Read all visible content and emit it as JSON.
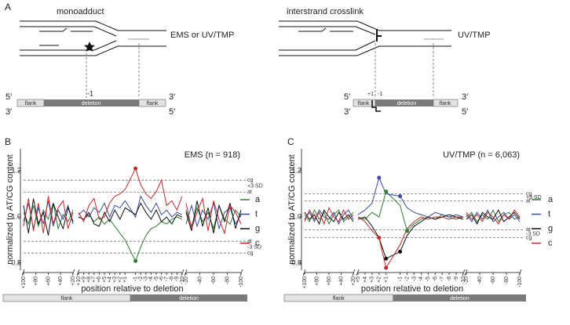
{
  "panel_a": {
    "label": "A",
    "left": {
      "title": "monoadduct",
      "agent": "EMS or UV/TMP",
      "pos": "-1",
      "top_left": "5′",
      "top_right": "3′",
      "bottom_left": "3′",
      "bottom_right": "5′",
      "bar": [
        "flank",
        "deletion",
        "flank"
      ]
    },
    "right": {
      "title": "interstrand crosslink",
      "agent": "UV/TMP",
      "pos_plus": "+1",
      "pos_minus": "-1",
      "top_left": "5′",
      "top_right": "3′",
      "bottom_left": "3′",
      "bottom_right": "5′",
      "bar": [
        "flank",
        "deletion",
        "flank"
      ]
    }
  },
  "chart_data": [
    {
      "type": "line",
      "panel": "B",
      "title": "EMS (n = 918)",
      "ylabel": "normalized to AT/CG content",
      "xlabel": "position relative to deletion",
      "ylim": [
        0.77,
        1.295
      ],
      "yticks": [
        0.8,
        {
          "value": 1,
          "label": "1.0"
        },
        1.2
      ],
      "ref_lines": [
        {
          "value": 1.159,
          "label": "cg"
        },
        {
          "value": 1.108,
          "label": "at"
        },
        {
          "value": 0.895,
          "label": "at"
        },
        {
          "value": 0.844,
          "label": "cg"
        }
      ],
      "sd_labels": [
        "+3 SD",
        "-3 SD"
      ],
      "band_labels": [
        "flank",
        "deletion"
      ],
      "segments": [
        {
          "x": [
            100,
            92,
            84,
            76,
            68,
            60,
            52,
            44,
            36,
            28,
            20
          ],
          "xlim": [
            100,
            20
          ],
          "xticks": [
            {
              "value": 100,
              "label": "+100"
            },
            {
              "value": 80,
              "label": "+80"
            },
            {
              "value": 60,
              "label": "+60"
            },
            {
              "value": 40,
              "label": "+40"
            },
            {
              "value": 20,
              "label": "+20"
            }
          ]
        },
        {
          "x": [
            10,
            9,
            8,
            7,
            6,
            5,
            4,
            3,
            2,
            1,
            -1,
            -2,
            -3,
            -4,
            -5,
            -6,
            -7,
            -8,
            -9,
            -10
          ],
          "xlim": [
            10,
            -10
          ],
          "xticks": [
            {
              "value": 10,
              "label": "+10"
            },
            {
              "value": 9,
              "label": "+9"
            },
            {
              "value": 8,
              "label": "+8"
            },
            {
              "value": 7,
              "label": "+7"
            },
            {
              "value": 6,
              "label": "+6"
            },
            {
              "value": 5,
              "label": "+5"
            },
            {
              "value": 4,
              "label": "+4"
            },
            {
              "value": 3,
              "label": "+3"
            },
            {
              "value": 2,
              "label": "+2"
            },
            {
              "value": 1,
              "label": "+1"
            },
            -1,
            -2,
            -3,
            -4,
            -5,
            -6,
            -7,
            -8,
            -9,
            -10
          ]
        },
        {
          "x": [
            -20,
            -28,
            -36,
            -44,
            -52,
            -60,
            -68,
            -76,
            -84,
            -92,
            -100
          ],
          "xlim": [
            -20,
            -100
          ],
          "xticks": [
            -20,
            -40,
            -60,
            -80,
            -100
          ]
        }
      ],
      "series": [
        {
          "name": "a",
          "color": "#2e7d32",
          "markers": [
            [],
            [
              10
            ],
            []
          ],
          "values": [
            [
              1.02,
              0.97,
              1.05,
              0.96,
              1.03,
              0.99,
              1.06,
              0.95,
              1.01,
              0.98,
              1.03
            ],
            [
              1.0,
              0.99,
              1.01,
              0.98,
              1.0,
              0.97,
              0.99,
              0.96,
              0.93,
              0.9,
              0.81,
              0.87,
              0.92,
              0.95,
              0.96,
              0.98,
              0.97,
              0.99,
              1.0,
              0.99
            ],
            [
              1.03,
              0.96,
              1.04,
              0.98,
              1.02,
              0.95,
              1.05,
              0.99,
              0.97,
              1.03,
              1.0
            ]
          ]
        },
        {
          "name": "t",
          "color": "#3b4ba8",
          "markers": [
            [],
            [],
            []
          ],
          "values": [
            [
              0.98,
              1.06,
              0.95,
              1.04,
              0.97,
              1.07,
              0.96,
              1.03,
              0.99,
              1.05,
              0.97
            ],
            [
              1.01,
              1.03,
              1.0,
              1.04,
              1.02,
              1.06,
              1.0,
              1.05,
              1.04,
              1.07,
              1.0,
              1.09,
              1.05,
              1.02,
              1.06,
              1.01,
              1.03,
              1.0,
              1.02,
              1.01
            ],
            [
              0.97,
              1.05,
              0.96,
              1.03,
              0.99,
              1.06,
              0.95,
              1.02,
              1.04,
              0.97,
              1.01
            ]
          ]
        },
        {
          "name": "g",
          "color": "#111111",
          "markers": [
            [],
            [],
            []
          ],
          "values": [
            [
              1.05,
              0.93,
              1.08,
              0.97,
              1.02,
              0.92,
              1.06,
              1.0,
              0.95,
              1.04,
              0.98
            ],
            [
              1.0,
              0.99,
              1.02,
              0.97,
              0.96,
              1.02,
              0.98,
              1.03,
              0.99,
              1.04,
              1.01,
              1.06,
              1.02,
              0.99,
              1.03,
              0.98,
              1.0,
              0.97,
              1.01,
              1.0
            ],
            [
              1.02,
              0.94,
              1.07,
              0.96,
              1.04,
              0.93,
              1.05,
              0.98,
              1.06,
              0.95,
              1.03
            ]
          ]
        },
        {
          "name": "c",
          "color": "#c62828",
          "markers": [
            [],
            [
              10
            ],
            []
          ],
          "values": [
            [
              0.96,
              1.08,
              0.94,
              1.06,
              0.93,
              1.09,
              0.97,
              1.04,
              1.07,
              0.95,
              1.02
            ],
            [
              1.02,
              0.98,
              1.05,
              1.08,
              0.99,
              1.0,
              1.06,
              1.09,
              1.1,
              1.12,
              1.21,
              1.14,
              1.1,
              1.08,
              1.11,
              1.16,
              1.05,
              1.07,
              1.03,
              1.09
            ],
            [
              1.06,
              0.95,
              1.02,
              1.08,
              0.94,
              1.07,
              0.99,
              0.93,
              1.05,
              1.02,
              0.97
            ]
          ]
        }
      ]
    },
    {
      "type": "line",
      "panel": "C",
      "title": "UV/TMP (n = 6,063)",
      "ylabel": "normalized to AT/CG content",
      "xlabel": "position relative to deletion",
      "ylim": [
        0.77,
        1.295
      ],
      "yticks": [
        0.8,
        {
          "value": 1,
          "label": "1.0"
        },
        1.2
      ],
      "ref_lines": [
        {
          "value": 1.1,
          "label": "cg"
        },
        {
          "value": 1.07,
          "label": "at"
        },
        {
          "value": 0.945,
          "label": "at"
        },
        {
          "value": 0.91,
          "label": "cg"
        }
      ],
      "sd_labels": [
        "+3 SD",
        "-3 SD"
      ],
      "band_labels": [
        "flank",
        "deletion"
      ],
      "segments": [
        {
          "x": [
            100,
            92,
            84,
            76,
            68,
            60,
            52,
            44,
            36,
            28,
            20
          ],
          "xlim": [
            100,
            20
          ],
          "xticks": [
            {
              "value": 100,
              "label": "+100"
            },
            {
              "value": 80,
              "label": "+80"
            },
            {
              "value": 60,
              "label": "+60"
            },
            {
              "value": 40,
              "label": "+40"
            },
            {
              "value": 20,
              "label": "+20"
            }
          ]
        },
        {
          "x": [
            5,
            4,
            3,
            2,
            1,
            -1,
            -2,
            -3,
            -4,
            -5,
            -6,
            -7,
            -8,
            -9,
            -10
          ],
          "xlim": [
            5,
            -10
          ],
          "xticks": [
            {
              "value": 5,
              "label": "+5"
            },
            {
              "value": 4,
              "label": "+4"
            },
            {
              "value": 3,
              "label": "+3"
            },
            {
              "value": 2,
              "label": "+2"
            },
            {
              "value": 1,
              "label": "+1"
            },
            -1,
            -2,
            -3,
            -4,
            -5,
            -6,
            -7,
            -8,
            -9,
            -10
          ]
        },
        {
          "x": [
            -20,
            -28,
            -36,
            -44,
            -52,
            -60,
            -68,
            -76,
            -84,
            -92,
            -100
          ],
          "xlim": [
            -20,
            -100
          ],
          "xticks": [
            -20,
            -40,
            -60,
            -80,
            -100
          ]
        }
      ],
      "series": [
        {
          "name": "a",
          "color": "#2e7d32",
          "markers": [
            [],
            [
              4,
              6
            ],
            []
          ],
          "values": [
            [
              1.01,
              0.98,
              1.03,
              0.99,
              1.02,
              0.97,
              1.01,
              1.03,
              0.98,
              1.0,
              1.02
            ],
            [
              1.0,
              0.99,
              1.02,
              1.0,
              1.11,
              1.05,
              0.94,
              0.97,
              0.99,
              1.0,
              0.99,
              1.01,
              1.0,
              0.99,
              1.0
            ],
            [
              1.0,
              1.02,
              0.98,
              1.01,
              0.99,
              1.03,
              0.98,
              1.01,
              1.02,
              0.99,
              1.0
            ]
          ]
        },
        {
          "name": "t",
          "color": "#3b4ba8",
          "markers": [
            [],
            [
              3,
              5
            ],
            []
          ],
          "values": [
            [
              0.99,
              1.02,
              0.98,
              1.03,
              1.0,
              0.99,
              1.02,
              0.97,
              1.01,
              1.03,
              0.99
            ],
            [
              1.01,
              1.03,
              1.06,
              1.17,
              1.1,
              1.09,
              1.04,
              1.02,
              1.01,
              1.0,
              1.02,
              1.01,
              1.0,
              1.01,
              1.0
            ],
            [
              1.01,
              0.98,
              1.02,
              0.99,
              1.03,
              0.98,
              1.0,
              1.02,
              0.99,
              1.01,
              0.98
            ]
          ]
        },
        {
          "name": "g",
          "color": "#111111",
          "markers": [
            [],
            [
              4,
              5
            ],
            []
          ],
          "values": [
            [
              1.02,
              0.99,
              1.01,
              0.97,
              1.03,
              1.0,
              0.98,
              1.02,
              0.99,
              1.01,
              0.98
            ],
            [
              0.99,
              1.0,
              0.96,
              0.91,
              0.82,
              0.85,
              0.92,
              0.96,
              0.98,
              1.0,
              0.99,
              1.0,
              1.01,
              1.0,
              0.99
            ],
            [
              0.99,
              1.01,
              0.97,
              1.02,
              1.0,
              0.99,
              1.03,
              0.98,
              1.0,
              1.02,
              0.99
            ]
          ]
        },
        {
          "name": "c",
          "color": "#c62828",
          "markers": [
            [],
            [
              3,
              4
            ],
            []
          ],
          "values": [
            [
              0.98,
              1.03,
              0.99,
              1.02,
              0.97,
              1.04,
              1.0,
              0.98,
              1.03,
              0.99,
              1.01
            ],
            [
              1.0,
              0.98,
              0.94,
              0.91,
              0.78,
              0.88,
              0.95,
              0.98,
              1.0,
              0.99,
              1.0,
              1.0,
              0.99,
              1.0,
              1.0
            ],
            [
              1.02,
              0.99,
              1.01,
              0.98,
              1.02,
              1.0,
              0.97,
              1.01,
              0.99,
              1.03,
              1.0
            ]
          ]
        }
      ]
    }
  ]
}
